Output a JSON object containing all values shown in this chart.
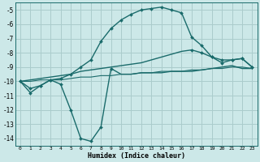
{
  "xlabel": "Humidex (Indice chaleur)",
  "background_color": "#cce8e8",
  "grid_color": "#aacccc",
  "line_color": "#1a6b6b",
  "xlim": [
    -0.5,
    23.5
  ],
  "ylim": [
    -14.5,
    -4.5
  ],
  "yticks": [
    -5,
    -6,
    -7,
    -8,
    -9,
    -10,
    -11,
    -12,
    -13,
    -14
  ],
  "xticks": [
    0,
    1,
    2,
    3,
    4,
    5,
    6,
    7,
    8,
    9,
    10,
    11,
    12,
    13,
    14,
    15,
    16,
    17,
    18,
    19,
    20,
    21,
    22,
    23
  ],
  "lines": [
    {
      "x": [
        0,
        1,
        2,
        3,
        4,
        5,
        6,
        7,
        8,
        9,
        10,
        11,
        12,
        13,
        14,
        15,
        16,
        17,
        18,
        19,
        20,
        21,
        22,
        23
      ],
      "y": [
        -10.0,
        -10.8,
        -10.3,
        -9.9,
        -10.2,
        -12.0,
        -14.0,
        -14.2,
        -13.2,
        -9.1,
        -9.5,
        -9.5,
        -9.4,
        -9.4,
        -9.4,
        -9.3,
        -9.3,
        -9.3,
        -9.2,
        -9.1,
        -9.0,
        -8.9,
        -9.1,
        -9.1
      ],
      "marker": "D",
      "markersize": 2.0,
      "linewidth": 1.0,
      "markevery": [
        0,
        1,
        2,
        3,
        4,
        5,
        6,
        7,
        8,
        9
      ]
    },
    {
      "x": [
        0,
        1,
        2,
        3,
        4,
        5,
        6,
        7,
        8,
        9,
        10,
        11,
        12,
        13,
        14,
        15,
        16,
        17,
        18,
        19,
        20,
        21,
        22,
        23
      ],
      "y": [
        -10.0,
        -10.5,
        -10.3,
        -9.9,
        -9.8,
        -9.5,
        -9.0,
        -8.5,
        -7.2,
        -6.3,
        -5.7,
        -5.3,
        -5.0,
        -4.9,
        -4.8,
        -5.0,
        -5.2,
        -6.9,
        -7.5,
        -8.3,
        -8.7,
        -8.5,
        -8.4,
        -9.0
      ],
      "marker": "D",
      "markersize": 2.0,
      "linewidth": 1.0,
      "markevery": [
        0,
        1,
        2,
        3,
        4,
        5,
        6,
        7,
        8,
        9,
        10,
        11,
        12,
        13,
        14,
        15,
        16,
        17,
        18,
        19,
        20,
        21,
        22,
        23
      ]
    },
    {
      "x": [
        0,
        1,
        2,
        3,
        4,
        5,
        6,
        7,
        8,
        9,
        10,
        11,
        12,
        13,
        14,
        15,
        16,
        17,
        18,
        19,
        20,
        21,
        22,
        23
      ],
      "y": [
        -10.0,
        -9.9,
        -9.8,
        -9.7,
        -9.6,
        -9.5,
        -9.3,
        -9.2,
        -9.1,
        -9.0,
        -8.9,
        -8.8,
        -8.7,
        -8.5,
        -8.3,
        -8.1,
        -7.9,
        -7.8,
        -8.0,
        -8.3,
        -8.5,
        -8.5,
        -8.4,
        -9.0
      ],
      "marker": "D",
      "markersize": 2.0,
      "linewidth": 1.0,
      "markevery": [
        17,
        18,
        19,
        20,
        21,
        22,
        23
      ]
    },
    {
      "x": [
        0,
        1,
        2,
        3,
        4,
        5,
        6,
        7,
        8,
        9,
        10,
        11,
        12,
        13,
        14,
        15,
        16,
        17,
        18,
        19,
        20,
        21,
        22,
        23
      ],
      "y": [
        -10.0,
        -10.0,
        -9.9,
        -9.9,
        -9.9,
        -9.8,
        -9.7,
        -9.7,
        -9.6,
        -9.6,
        -9.5,
        -9.5,
        -9.4,
        -9.4,
        -9.3,
        -9.3,
        -9.3,
        -9.2,
        -9.2,
        -9.1,
        -9.1,
        -9.0,
        -9.0,
        -9.1
      ],
      "marker": null,
      "markersize": 0,
      "linewidth": 0.8,
      "markevery": []
    }
  ]
}
